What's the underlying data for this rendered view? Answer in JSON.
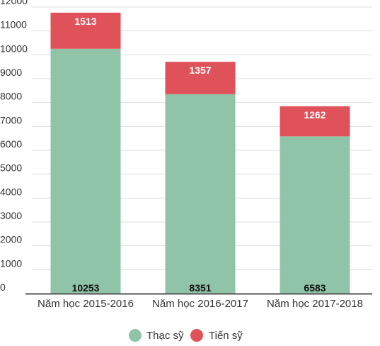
{
  "chart_data": {
    "type": "bar",
    "stacked": true,
    "categories": [
      "Năm học 2015-2016",
      "Năm học 2016-2017",
      "Năm học 2017-2018"
    ],
    "series": [
      {
        "name": "Thạc sỹ",
        "values": [
          10253,
          8351,
          6583
        ],
        "color": "#8fc4a8"
      },
      {
        "name": "Tiến sỹ",
        "values": [
          1513,
          1357,
          1262
        ],
        "color": "#e05259"
      }
    ],
    "yticks": [
      0,
      1000,
      2000,
      3000,
      4000,
      5000,
      6000,
      7000,
      8000,
      9000,
      10000,
      11000,
      12000
    ],
    "ylim": [
      0,
      12000
    ],
    "grid": true,
    "legend_position": "bottom"
  }
}
